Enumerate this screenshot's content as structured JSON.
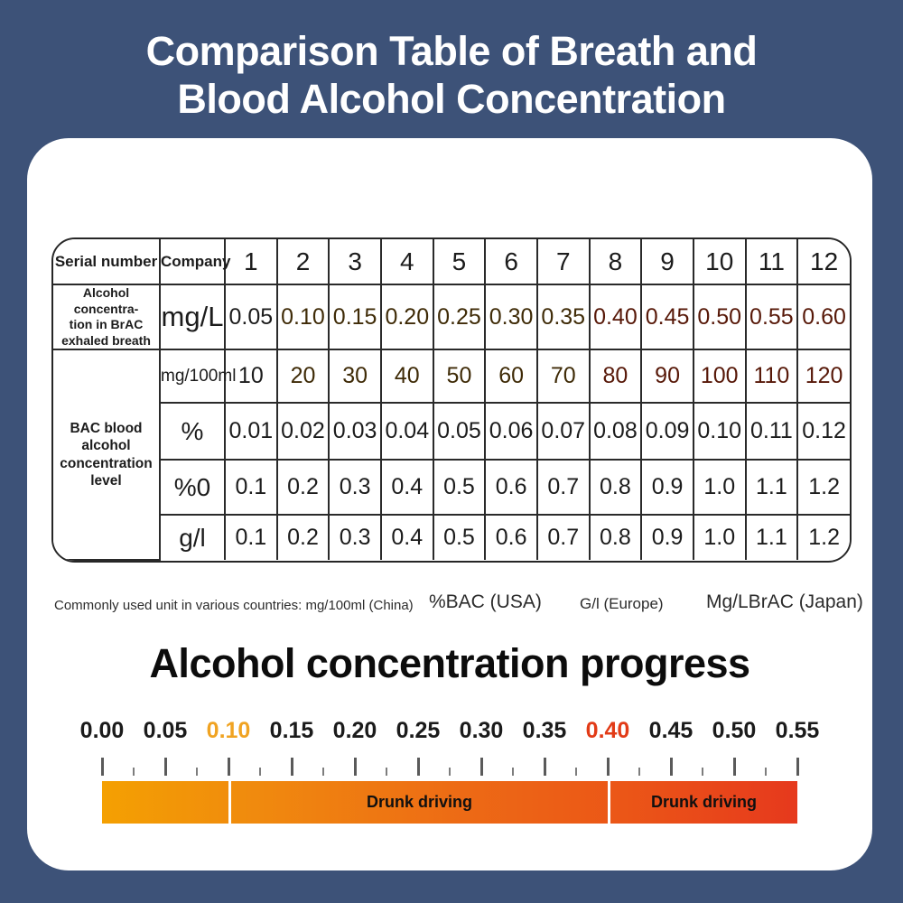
{
  "title": {
    "line1": "Comparison Table of Breath and",
    "line2": "Blood Alcohol Concentration"
  },
  "table": {
    "corner_label": "Serial number",
    "company_label": "Company",
    "serial_numbers": [
      "1",
      "2",
      "3",
      "4",
      "5",
      "6",
      "7",
      "8",
      "9",
      "10",
      "11",
      "12"
    ],
    "brac_row": {
      "label": "Alcohol concentra-\ntion in BrAC\nexhaled breath",
      "unit": "mg/L",
      "values": [
        "0.05",
        "0.10",
        "0.15",
        "0.20",
        "0.25",
        "0.30",
        "0.35",
        "0.40",
        "0.45",
        "0.50",
        "0.55",
        "0.60"
      ],
      "cell_colors": [
        "white",
        "orange",
        "orange",
        "orange",
        "orange",
        "orange",
        "orange",
        "red",
        "red",
        "red",
        "red",
        "red"
      ]
    },
    "bac_group": {
      "label": "BAC blood alcohol concentration level",
      "rows": [
        {
          "unit": "mg/100ml",
          "values": [
            "10",
            "20",
            "30",
            "40",
            "50",
            "60",
            "70",
            "80",
            "90",
            "100",
            "110",
            "120"
          ],
          "cell_colors": [
            "white",
            "orange",
            "orange",
            "orange",
            "orange",
            "orange",
            "orange",
            "red",
            "red",
            "red",
            "red",
            "red"
          ]
        },
        {
          "unit": "%",
          "values": [
            "0.01",
            "0.02",
            "0.03",
            "0.04",
            "0.05",
            "0.06",
            "0.07",
            "0.08",
            "0.09",
            "0.10",
            "0.11",
            "0.12"
          ],
          "cell_colors": [
            "white",
            "white",
            "white",
            "white",
            "white",
            "white",
            "white",
            "white",
            "white",
            "white",
            "white",
            "white"
          ]
        },
        {
          "unit": "%0",
          "values": [
            "0.1",
            "0.2",
            "0.3",
            "0.4",
            "0.5",
            "0.6",
            "0.7",
            "0.8",
            "0.9",
            "1.0",
            "1.1",
            "1.2"
          ],
          "cell_colors": [
            "white",
            "white",
            "white",
            "white",
            "white",
            "white",
            "white",
            "white",
            "white",
            "white",
            "white",
            "white"
          ]
        },
        {
          "unit": "g/l",
          "values": [
            "0.1",
            "0.2",
            "0.3",
            "0.4",
            "0.5",
            "0.6",
            "0.7",
            "0.8",
            "0.9",
            "1.0",
            "1.1",
            "1.2"
          ],
          "cell_colors": [
            "white",
            "white",
            "white",
            "white",
            "white",
            "white",
            "white",
            "white",
            "white",
            "white",
            "white",
            "white"
          ]
        }
      ]
    }
  },
  "footnote": {
    "china": "Commonly used unit in various countries: mg/100ml (China)",
    "usa": "%BAC (USA)",
    "europe": "G/l (Europe)",
    "japan": "Mg/LBrAC (Japan)"
  },
  "progress": {
    "heading": "Alcohol concentration progress",
    "tick_labels": [
      {
        "text": "0.00",
        "color": "#1b1b1b"
      },
      {
        "text": "0.05",
        "color": "#1b1b1b"
      },
      {
        "text": "0.10",
        "color": "#f0a322"
      },
      {
        "text": "0.15",
        "color": "#1b1b1b"
      },
      {
        "text": "0.20",
        "color": "#1b1b1b"
      },
      {
        "text": "0.25",
        "color": "#1b1b1b"
      },
      {
        "text": "0.30",
        "color": "#1b1b1b"
      },
      {
        "text": "0.35",
        "color": "#1b1b1b"
      },
      {
        "text": "0.40",
        "color": "#e23b17"
      },
      {
        "text": "0.45",
        "color": "#1b1b1b"
      },
      {
        "text": "0.50",
        "color": "#1b1b1b"
      },
      {
        "text": "0.55",
        "color": "#1b1b1b"
      }
    ],
    "bar_segments": [
      {
        "from": "0.00",
        "to": "0.10",
        "label": ""
      },
      {
        "from": "0.10",
        "to": "0.40",
        "label": "Drunk driving"
      },
      {
        "from": "0.40",
        "to": "0.55",
        "label": "Drunk driving"
      }
    ],
    "scale_max": "0.55"
  },
  "colors": {
    "background": "#3d5278",
    "card": "#ffffff",
    "orange_cell": "#f2a20e",
    "red_cell": "#ee3a12",
    "table_border": "#2a2a2a",
    "bar_gradient_start": "#f4a002",
    "bar_gradient_end": "#e6391d",
    "highlight_orange_label": "#f0a322",
    "highlight_red_label": "#e23b17"
  },
  "chart_data": {
    "type": "table",
    "title": "Comparison Table of Breath and Blood Alcohol Concentration",
    "columns": [
      "Serial number",
      "Company",
      "1",
      "2",
      "3",
      "4",
      "5",
      "6",
      "7",
      "8",
      "9",
      "10",
      "11",
      "12"
    ],
    "rows": [
      [
        "Alcohol concentration in BrAC exhaled breath",
        "mg/L",
        0.05,
        0.1,
        0.15,
        0.2,
        0.25,
        0.3,
        0.35,
        0.4,
        0.45,
        0.5,
        0.55,
        0.6
      ],
      [
        "BAC blood alcohol concentration level",
        "mg/100ml",
        10,
        20,
        30,
        40,
        50,
        60,
        70,
        80,
        90,
        100,
        110,
        120
      ],
      [
        "BAC blood alcohol concentration level",
        "%",
        0.01,
        0.02,
        0.03,
        0.04,
        0.05,
        0.06,
        0.07,
        0.08,
        0.09,
        0.1,
        0.11,
        0.12
      ],
      [
        "BAC blood alcohol concentration level",
        "%0",
        0.1,
        0.2,
        0.3,
        0.4,
        0.5,
        0.6,
        0.7,
        0.8,
        0.9,
        1.0,
        1.1,
        1.2
      ],
      [
        "BAC blood alcohol concentration level",
        "g/l",
        0.1,
        0.2,
        0.3,
        0.4,
        0.5,
        0.6,
        0.7,
        0.8,
        0.9,
        1.0,
        1.1,
        1.2
      ]
    ],
    "cell_highlighting": {
      "orange_columns_serial": [
        2,
        3,
        4,
        5,
        6,
        7
      ],
      "red_columns_serial": [
        8,
        9,
        10,
        11,
        12
      ],
      "applies_to_rows": [
        "mg/L",
        "mg/100ml"
      ]
    },
    "progress_scale": {
      "type": "bar",
      "axis_ticks": [
        0.0,
        0.05,
        0.1,
        0.15,
        0.2,
        0.25,
        0.3,
        0.35,
        0.4,
        0.45,
        0.5,
        0.55
      ],
      "highlighted_ticks": {
        "0.10": "orange",
        "0.40": "red"
      },
      "segments": [
        {
          "range": [
            0.0,
            0.1
          ],
          "label": ""
        },
        {
          "range": [
            0.1,
            0.4
          ],
          "label": "Drunk driving"
        },
        {
          "range": [
            0.4,
            0.55
          ],
          "label": "Drunk driving"
        }
      ],
      "title": "Alcohol concentration progress"
    }
  }
}
